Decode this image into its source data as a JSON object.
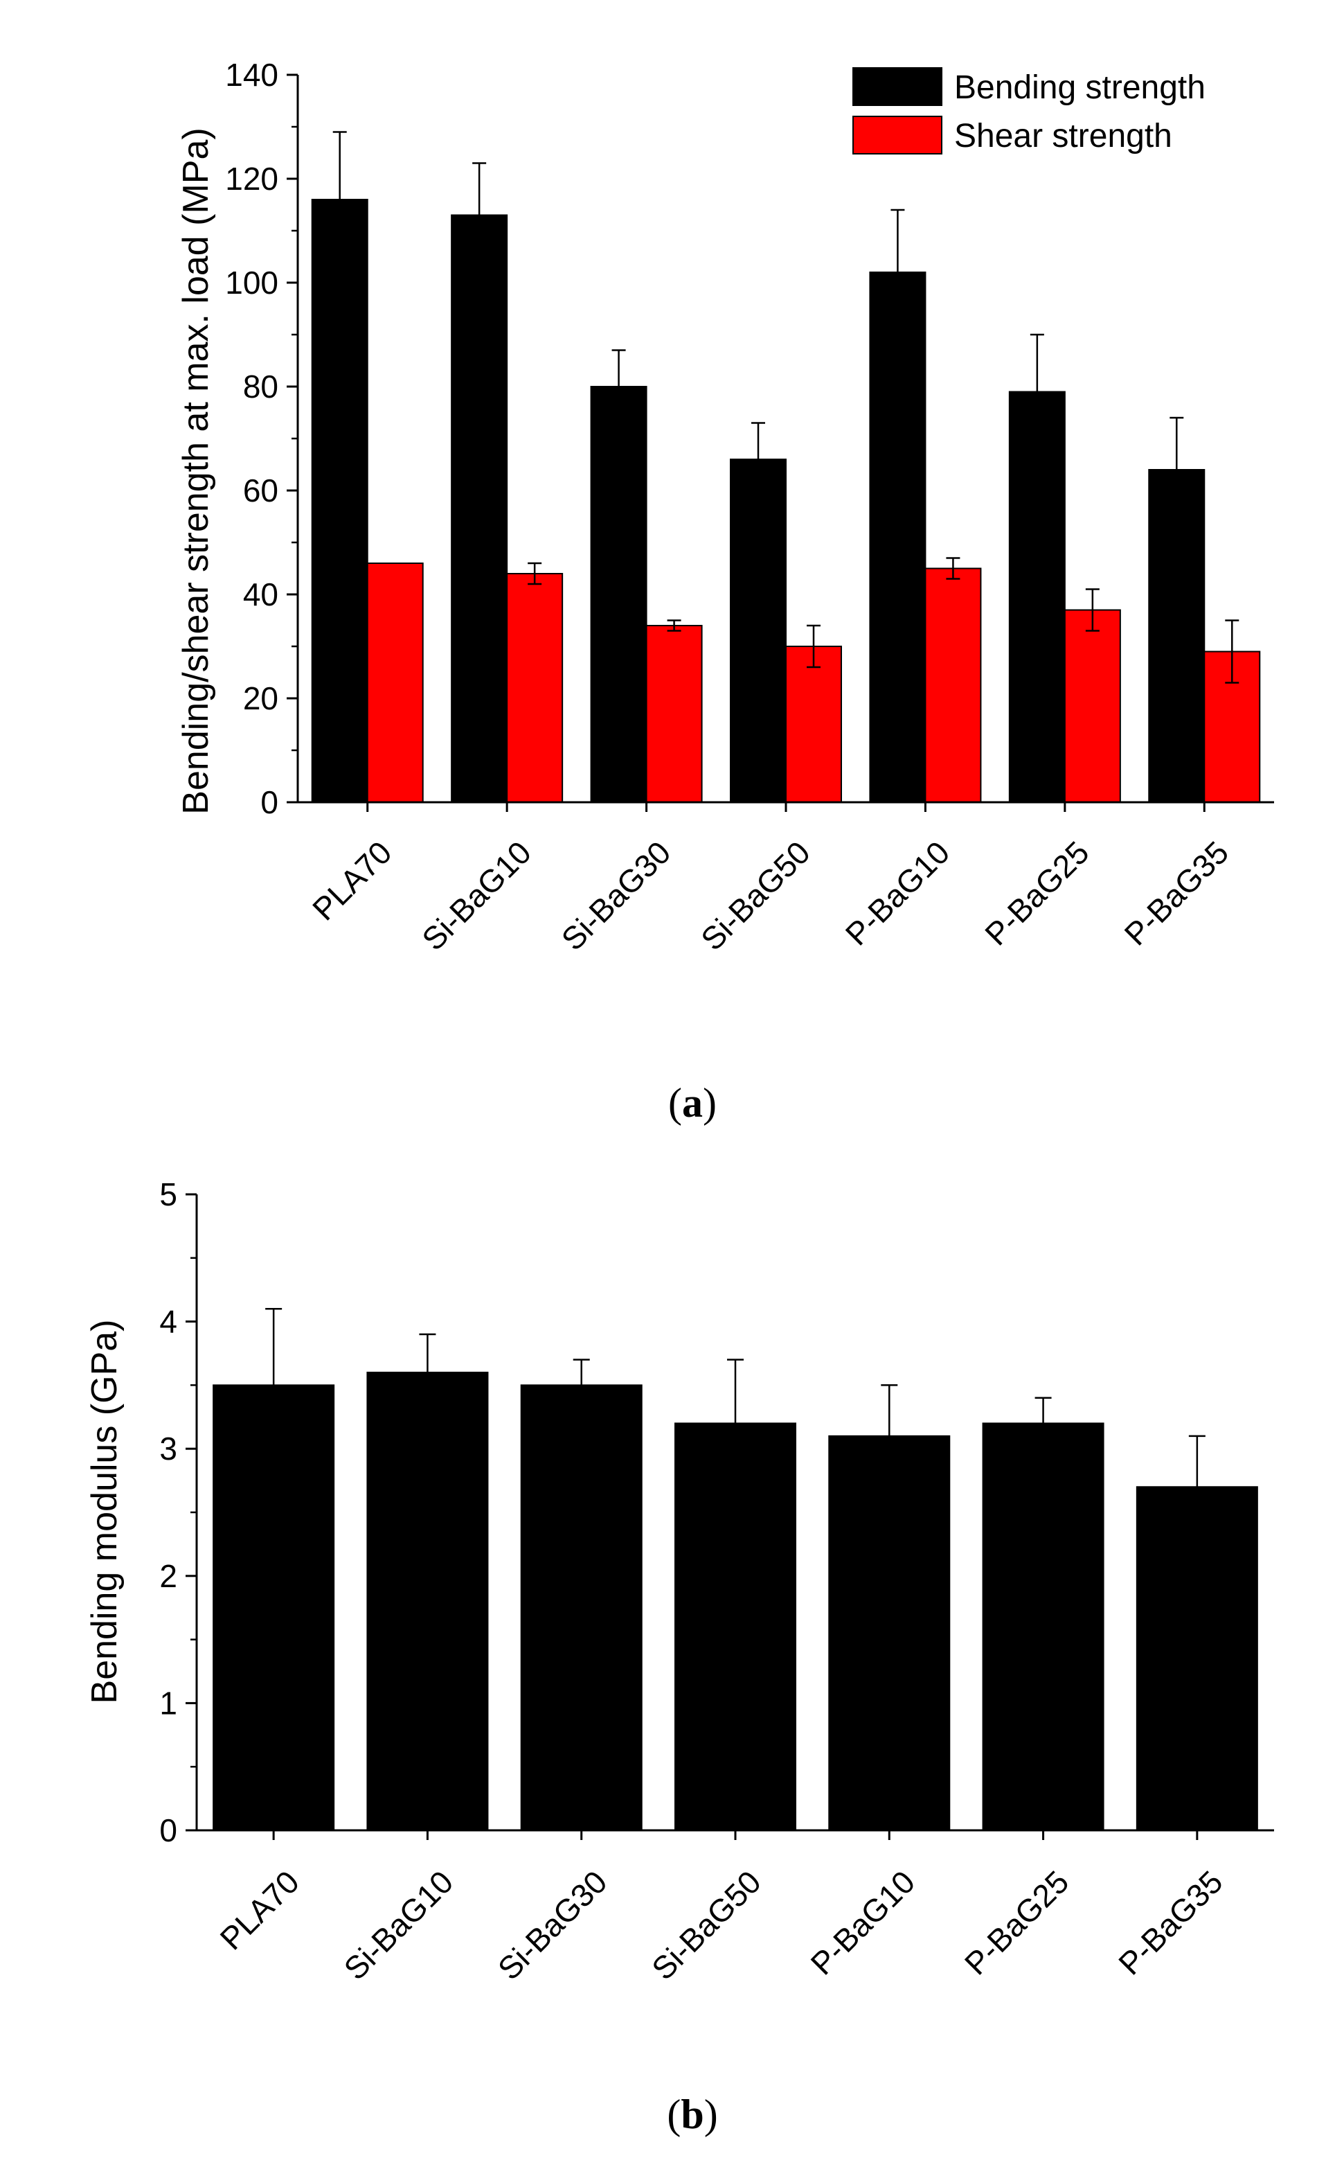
{
  "chart_data": [
    {
      "type": "bar",
      "panel_label": "a",
      "categories": [
        "PLA70",
        "Si-BaG10",
        "Si-BaG30",
        "Si-BaG50",
        "P-BaG10",
        "P-BaG25",
        "P-BaG35"
      ],
      "series": [
        {
          "name": "Bending strength",
          "color": "#000000",
          "values": [
            116,
            113,
            80,
            66,
            102,
            79,
            64
          ],
          "errors": [
            13,
            10,
            7,
            7,
            12,
            11,
            10
          ]
        },
        {
          "name": "Shear strength",
          "color": "#ff0000",
          "values": [
            46,
            44,
            34,
            30,
            45,
            37,
            29
          ],
          "errors": [
            0,
            2,
            1,
            4,
            2,
            4,
            6
          ]
        }
      ],
      "title": "",
      "xlabel": "",
      "ylabel": "Bending/shear strength at max. load (MPa)",
      "ylim": [
        0,
        140
      ],
      "yticks": [
        0,
        20,
        40,
        60,
        80,
        100,
        120,
        140
      ],
      "grid": false,
      "legend": "top-right"
    },
    {
      "type": "bar",
      "panel_label": "b",
      "categories": [
        "PLA70",
        "Si-BaG10",
        "Si-BaG30",
        "Si-BaG50",
        "P-BaG10",
        "P-BaG25",
        "P-BaG35"
      ],
      "series": [
        {
          "name": "Bending modulus",
          "color": "#000000",
          "values": [
            3.5,
            3.6,
            3.5,
            3.2,
            3.1,
            3.2,
            2.7
          ],
          "errors": [
            0.6,
            0.3,
            0.2,
            0.5,
            0.4,
            0.2,
            0.4
          ]
        }
      ],
      "title": "",
      "xlabel": "",
      "ylabel": "Bending modulus (GPa)",
      "ylim": [
        0,
        5
      ],
      "yticks": [
        0,
        1,
        2,
        3,
        4,
        5
      ],
      "grid": false,
      "legend": "none"
    }
  ]
}
